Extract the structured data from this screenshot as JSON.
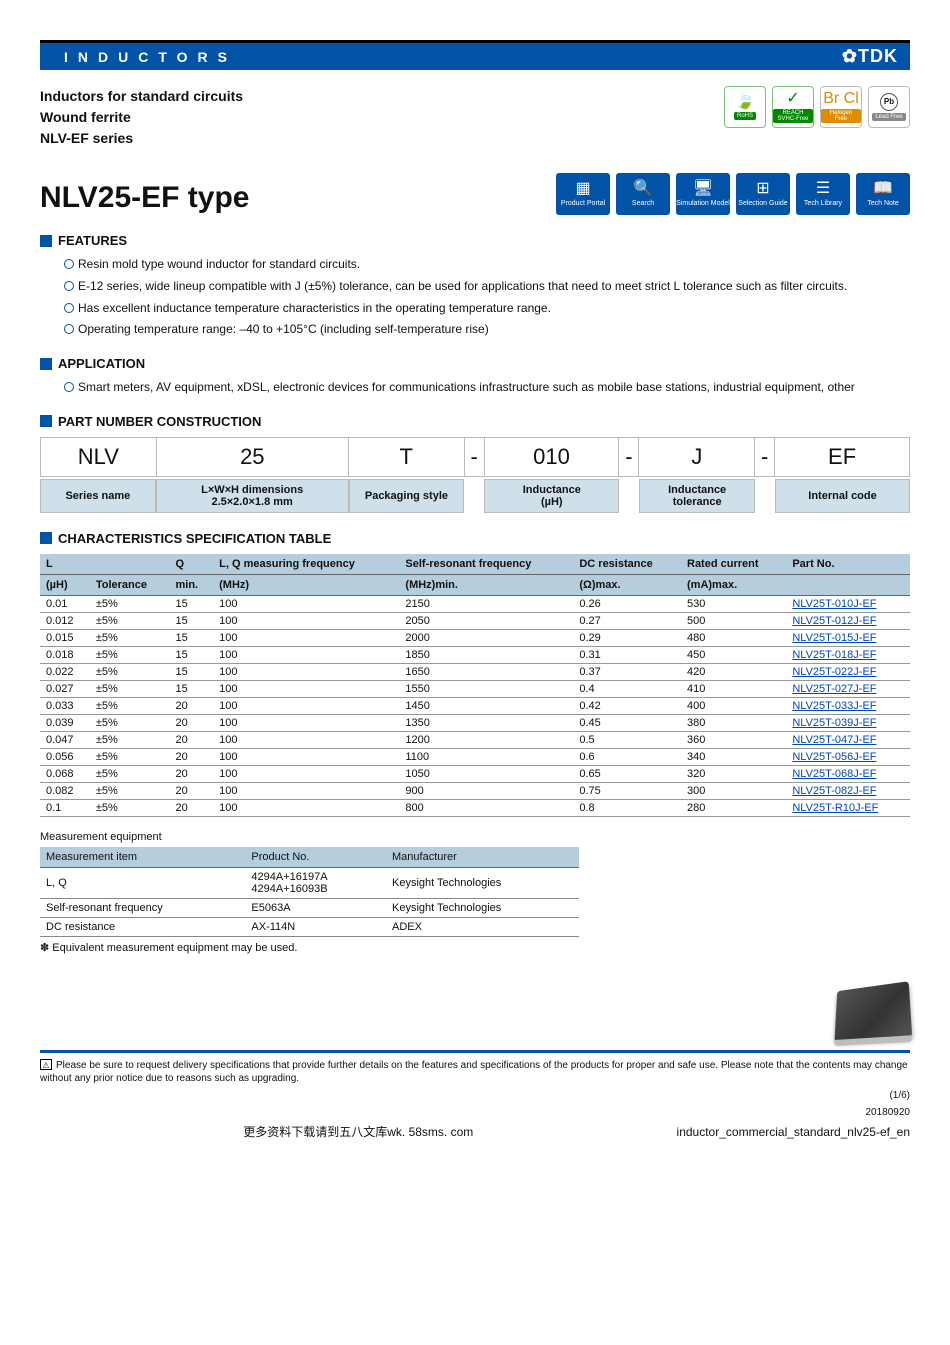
{
  "header": {
    "category": "INDUCTORS",
    "brand": "✿TDK",
    "subtitle_lines": [
      "Inductors for standard circuits",
      "Wound ferrite",
      "NLV-EF series"
    ],
    "compliance_badges": [
      {
        "icon": "🍃",
        "label": "RoHS"
      },
      {
        "icon": "✓",
        "label": "REACH SVHC-Free"
      },
      {
        "icon": "Br Cl",
        "label": "Halogen Free"
      },
      {
        "icon": "Pb",
        "label": "Lead Free"
      }
    ]
  },
  "title": "NLV25-EF type",
  "nav_tiles": [
    {
      "icon": "▦",
      "label": "Product Portal"
    },
    {
      "icon": "🔍",
      "label": "Search"
    },
    {
      "icon": "🖥",
      "label": "Simulation Model"
    },
    {
      "icon": "⊞",
      "label": "Selection Guide"
    },
    {
      "icon": "☰",
      "label": "Tech Library"
    },
    {
      "icon": "📖",
      "label": "Tech Note"
    }
  ],
  "sections": {
    "features": {
      "heading": "FEATURES",
      "items": [
        "Resin mold type wound inductor for standard circuits.",
        "E-12 series, wide lineup compatible with J (±5%) tolerance, can be used for applications that need to meet strict L tolerance such as filter circuits.",
        "Has excellent inductance temperature characteristics in the operating temperature range.",
        "Operating temperature range: –40 to +105°C (including self-temperature rise)"
      ]
    },
    "application": {
      "heading": "APPLICATION",
      "items": [
        "Smart meters, AV equipment, xDSL, electronic devices for communications infrastructure such as mobile base stations, industrial equipment, other"
      ]
    },
    "part_number": {
      "heading": "PART NUMBER CONSTRUCTION",
      "segments": [
        {
          "code": "NLV",
          "desc": "Series name"
        },
        {
          "code": "25",
          "desc": "L×W×H dimensions\n2.5×2.0×1.8 mm"
        },
        {
          "code": "T",
          "desc": "Packaging style"
        },
        {
          "code": "010",
          "desc": "Inductance\n(µH)"
        },
        {
          "code": "J",
          "desc": "Inductance\ntolerance"
        },
        {
          "code": "EF",
          "desc": "Internal code"
        }
      ]
    },
    "spec_table": {
      "heading": "CHARACTERISTICS SPECIFICATION TABLE",
      "columns_top": [
        "L",
        "",
        "Q",
        "L, Q measuring frequency",
        "Self-resonant frequency",
        "DC resistance",
        "Rated current",
        "Part No."
      ],
      "columns_sub": [
        "(µH)",
        "Tolerance",
        "min.",
        "(MHz)",
        "(MHz)min.",
        "(Ω)max.",
        "(mA)max.",
        ""
      ],
      "rows": [
        [
          "0.01",
          "±5%",
          "15",
          "100",
          "2150",
          "0.26",
          "530",
          "NLV25T-010J-EF"
        ],
        [
          "0.012",
          "±5%",
          "15",
          "100",
          "2050",
          "0.27",
          "500",
          "NLV25T-012J-EF"
        ],
        [
          "0.015",
          "±5%",
          "15",
          "100",
          "2000",
          "0.29",
          "480",
          "NLV25T-015J-EF"
        ],
        [
          "0.018",
          "±5%",
          "15",
          "100",
          "1850",
          "0.31",
          "450",
          "NLV25T-018J-EF"
        ],
        [
          "0.022",
          "±5%",
          "15",
          "100",
          "1650",
          "0.37",
          "420",
          "NLV25T-022J-EF"
        ],
        [
          "0.027",
          "±5%",
          "15",
          "100",
          "1550",
          "0.4",
          "410",
          "NLV25T-027J-EF"
        ],
        [
          "0.033",
          "±5%",
          "20",
          "100",
          "1450",
          "0.42",
          "400",
          "NLV25T-033J-EF"
        ],
        [
          "0.039",
          "±5%",
          "20",
          "100",
          "1350",
          "0.45",
          "380",
          "NLV25T-039J-EF"
        ],
        [
          "0.047",
          "±5%",
          "20",
          "100",
          "1200",
          "0.5",
          "360",
          "NLV25T-047J-EF"
        ],
        [
          "0.056",
          "±5%",
          "20",
          "100",
          "1100",
          "0.6",
          "340",
          "NLV25T-056J-EF"
        ],
        [
          "0.068",
          "±5%",
          "20",
          "100",
          "1050",
          "0.65",
          "320",
          "NLV25T-068J-EF"
        ],
        [
          "0.082",
          "±5%",
          "20",
          "100",
          "900",
          "0.75",
          "300",
          "NLV25T-082J-EF"
        ],
        [
          "0.1",
          "±5%",
          "20",
          "100",
          "800",
          "0.8",
          "280",
          "NLV25T-R10J-EF"
        ]
      ]
    },
    "measurement": {
      "title": "Measurement equipment",
      "columns": [
        "Measurement item",
        "Product No.",
        "Manufacturer"
      ],
      "rows": [
        [
          "L, Q",
          "4294A+16197A\n4294A+16093B",
          "Keysight Technologies"
        ],
        [
          "Self-resonant frequency",
          "E5063A",
          "Keysight Technologies"
        ],
        [
          "DC resistance",
          "AX-114N",
          "ADEX"
        ]
      ],
      "note": "✽ Equivalent measurement equipment may be used."
    }
  },
  "footer": {
    "disclaimer": "Please be sure to request delivery specifications that provide further details on the features and specifications of the products for proper and safe use. Please note that the contents may change without any prior notice due to reasons such as upgrading.",
    "page": "(1/6)",
    "date": "20180920",
    "docid": "inductor_commercial_standard_nlv25-ef_en",
    "wk": "更多资料下载请到五八文库wk. 58sms. com"
  },
  "style": {
    "brand_blue": "#0053a6",
    "link_blue": "#0048c0",
    "table_header_bg": "#b5cede",
    "pnc_desc_bg": "#cfe0eb"
  }
}
